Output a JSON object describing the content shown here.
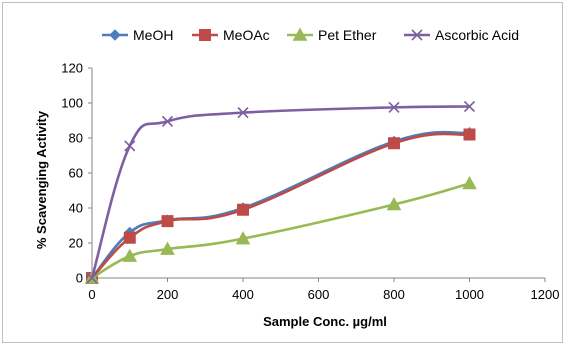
{
  "chart_data": {
    "type": "line",
    "title": "",
    "xlabel": "Sample Conc. µg/ml",
    "ylabel": "% Scavenging Activity",
    "xlim": [
      0,
      1200
    ],
    "ylim": [
      0,
      120
    ],
    "xticks": [
      0,
      200,
      400,
      600,
      800,
      1000,
      1200
    ],
    "yticks": [
      0,
      20,
      40,
      60,
      80,
      100,
      120
    ],
    "grid": false,
    "legend_position": "top",
    "series": [
      {
        "name": "MeOH",
        "color": "#4a7ebb",
        "marker": "diamond",
        "x": [
          0,
          100,
          200,
          400,
          800,
          1000
        ],
        "y": [
          0,
          26,
          33,
          40,
          78,
          83
        ]
      },
      {
        "name": "MeOAc",
        "color": "#be4b48",
        "marker": "square",
        "x": [
          0,
          100,
          200,
          400,
          800,
          1000
        ],
        "y": [
          0,
          23,
          32.5,
          39,
          77,
          82
        ]
      },
      {
        "name": "Pet Ether",
        "color": "#98b954",
        "marker": "triangle",
        "x": [
          0,
          100,
          200,
          400,
          800,
          1000
        ],
        "y": [
          0,
          12.5,
          16.5,
          22.5,
          42,
          54
        ]
      },
      {
        "name": "Ascorbic Acid",
        "color": "#7d60a0",
        "marker": "x",
        "x": [
          0,
          100,
          200,
          400,
          800,
          1000
        ],
        "y": [
          0,
          75.5,
          89.5,
          94.5,
          97.5,
          98
        ]
      }
    ]
  }
}
